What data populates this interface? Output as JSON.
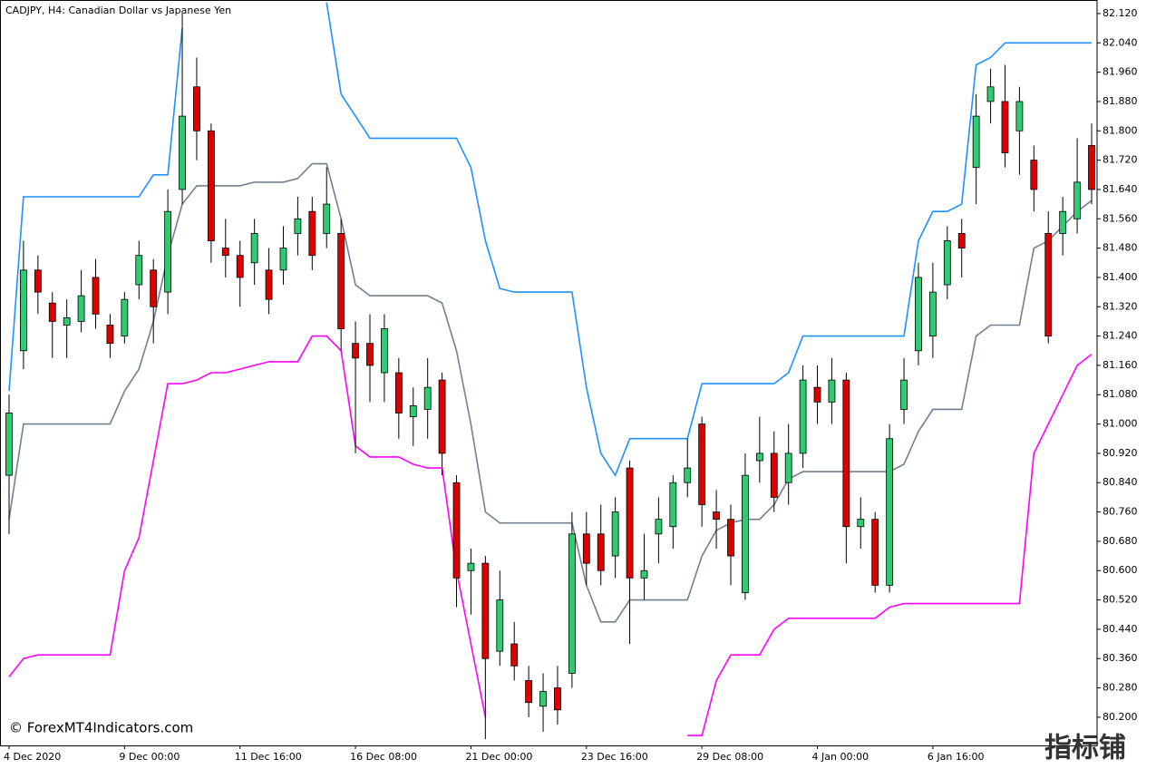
{
  "chart_data": {
    "type": "candlestick",
    "title": "CADJPY, H4:  Canadian Dollar vs Japanese Yen",
    "watermark": "© ForexMT4Indicators.com",
    "corner_mark": "指标铺",
    "bull_color": "#2ecc71",
    "bear_color": "#dd0000",
    "open": [
      80.86,
      81.2,
      81.42,
      81.33,
      81.27,
      81.28,
      81.4,
      81.27,
      81.24,
      81.38,
      81.42,
      81.36,
      81.64,
      81.92,
      81.8,
      81.48,
      81.46,
      81.44,
      81.42,
      81.42,
      81.52,
      81.58,
      81.52,
      81.52,
      81.22,
      81.22,
      81.14,
      81.14,
      81.02,
      81.04,
      81.12,
      80.84,
      80.6,
      80.62,
      80.38,
      80.4,
      80.3,
      80.23,
      80.28,
      80.32,
      80.7,
      80.7,
      80.64,
      80.88,
      80.58,
      80.7,
      80.72,
      80.84,
      81.0,
      80.76,
      80.74,
      80.54,
      80.9,
      80.92,
      80.84,
      80.92,
      81.1,
      81.06,
      81.12,
      80.72,
      80.74,
      80.56,
      81.04,
      81.2,
      81.24,
      81.38,
      81.52,
      81.7,
      81.88,
      81.88,
      81.8,
      81.72,
      81.52,
      81.52,
      81.56,
      81.76
    ],
    "high": [
      81.08,
      81.5,
      81.46,
      81.36,
      81.34,
      81.42,
      81.45,
      81.3,
      81.36,
      81.5,
      81.45,
      81.64,
      82.12,
      82.0,
      81.82,
      81.56,
      81.5,
      81.56,
      81.48,
      81.54,
      81.62,
      81.62,
      81.7,
      81.56,
      81.28,
      81.3,
      81.3,
      81.18,
      81.1,
      81.18,
      81.14,
      80.86,
      80.66,
      80.64,
      80.6,
      80.46,
      80.34,
      80.32,
      80.34,
      80.76,
      80.76,
      80.78,
      80.8,
      80.9,
      80.7,
      80.8,
      80.86,
      80.96,
      81.02,
      80.82,
      80.78,
      80.92,
      81.02,
      80.98,
      81.0,
      81.16,
      81.16,
      81.18,
      81.14,
      80.8,
      80.76,
      81.0,
      81.18,
      81.44,
      81.44,
      81.54,
      81.56,
      81.9,
      81.97,
      81.98,
      81.92,
      81.76,
      81.58,
      81.62,
      81.78,
      81.82
    ],
    "low": [
      80.7,
      81.15,
      81.3,
      81.18,
      81.18,
      81.25,
      81.26,
      81.18,
      81.22,
      81.34,
      81.22,
      81.3,
      81.6,
      81.72,
      81.44,
      81.4,
      81.32,
      81.38,
      81.3,
      81.38,
      81.46,
      81.42,
      81.48,
      81.2,
      80.92,
      81.06,
      81.06,
      80.96,
      80.94,
      80.96,
      80.86,
      80.5,
      80.48,
      80.14,
      80.34,
      80.3,
      80.2,
      80.16,
      80.18,
      80.28,
      80.56,
      80.56,
      80.58,
      80.4,
      80.52,
      80.62,
      80.66,
      80.8,
      80.72,
      80.66,
      80.56,
      80.52,
      80.84,
      80.76,
      80.78,
      80.88,
      81.0,
      81.0,
      80.62,
      80.66,
      80.54,
      80.54,
      81.0,
      81.16,
      81.18,
      81.34,
      81.4,
      81.6,
      81.82,
      81.7,
      81.68,
      81.58,
      81.22,
      81.46,
      81.52,
      81.6
    ],
    "close": [
      81.03,
      81.42,
      81.36,
      81.28,
      81.29,
      81.35,
      81.3,
      81.22,
      81.34,
      81.46,
      81.32,
      81.58,
      81.84,
      81.8,
      81.5,
      81.46,
      81.4,
      81.52,
      81.34,
      81.48,
      81.56,
      81.46,
      81.6,
      81.26,
      81.18,
      81.16,
      81.26,
      81.03,
      81.05,
      81.1,
      80.92,
      80.58,
      80.62,
      80.36,
      80.52,
      80.34,
      80.24,
      80.27,
      80.22,
      80.7,
      80.62,
      80.6,
      80.76,
      80.58,
      80.6,
      80.74,
      80.84,
      80.88,
      80.78,
      80.74,
      80.64,
      80.86,
      80.92,
      80.8,
      80.92,
      81.12,
      81.06,
      81.12,
      80.72,
      80.74,
      80.56,
      80.96,
      81.12,
      81.4,
      81.36,
      81.5,
      81.48,
      81.84,
      81.92,
      81.74,
      81.88,
      81.64,
      81.24,
      81.58,
      81.66,
      81.64
    ],
    "series": [
      {
        "color": "#1e90ff",
        "values": [
          81.09,
          81.62,
          81.62,
          81.62,
          81.62,
          81.62,
          81.62,
          81.62,
          81.62,
          81.62,
          81.68,
          81.68,
          82.08,
          null,
          null,
          null,
          null,
          null,
          null,
          null,
          null,
          null,
          82.15,
          81.9,
          81.84,
          81.78,
          81.78,
          81.78,
          81.78,
          81.78,
          81.78,
          81.78,
          81.7,
          81.5,
          81.37,
          81.36,
          81.36,
          81.36,
          81.36,
          81.36,
          81.1,
          80.92,
          80.86,
          80.96,
          80.96,
          80.96,
          80.96,
          80.96,
          81.11,
          81.11,
          81.11,
          81.11,
          81.11,
          81.11,
          81.14,
          81.24,
          81.24,
          81.24,
          81.24,
          81.24,
          81.24,
          81.24,
          81.24,
          81.5,
          81.58,
          81.58,
          81.6,
          81.98,
          82.0,
          82.04,
          82.04,
          82.04,
          82.04,
          82.04,
          82.04,
          82.04
        ]
      },
      {
        "color": "#708090",
        "values": [
          80.74,
          81.0,
          81.0,
          81.0,
          81.0,
          81.0,
          81.0,
          81.0,
          81.09,
          81.15,
          81.28,
          81.46,
          81.6,
          81.65,
          81.65,
          81.65,
          81.65,
          81.66,
          81.66,
          81.66,
          81.67,
          81.71,
          81.71,
          81.56,
          81.38,
          81.35,
          81.35,
          81.35,
          81.35,
          81.35,
          81.33,
          81.2,
          81.0,
          80.76,
          80.73,
          80.73,
          80.73,
          80.73,
          80.73,
          80.73,
          80.56,
          80.46,
          80.46,
          80.52,
          80.52,
          80.52,
          80.52,
          80.52,
          80.64,
          80.71,
          80.73,
          80.74,
          80.74,
          80.78,
          80.85,
          80.87,
          80.87,
          80.87,
          80.87,
          80.87,
          80.87,
          80.87,
          80.89,
          80.98,
          81.04,
          81.04,
          81.04,
          81.24,
          81.27,
          81.27,
          81.27,
          81.48,
          81.5,
          81.54,
          81.58,
          81.61
        ]
      },
      {
        "color": "#ff00ff",
        "values": [
          80.31,
          80.36,
          80.37,
          80.37,
          80.37,
          80.37,
          80.37,
          80.37,
          80.6,
          80.69,
          80.9,
          81.11,
          81.11,
          81.12,
          81.14,
          81.14,
          81.15,
          81.16,
          81.17,
          81.17,
          81.17,
          81.24,
          81.24,
          81.2,
          80.94,
          80.91,
          80.91,
          80.91,
          80.89,
          80.88,
          80.88,
          80.6,
          80.4,
          80.2,
          null,
          null,
          null,
          null,
          null,
          null,
          null,
          null,
          null,
          null,
          null,
          null,
          null,
          80.15,
          80.15,
          80.3,
          80.37,
          80.37,
          80.37,
          80.44,
          80.47,
          80.47,
          80.47,
          80.47,
          80.47,
          80.47,
          80.47,
          80.5,
          80.51,
          80.51,
          80.51,
          80.51,
          80.51,
          80.51,
          80.51,
          80.51,
          80.51,
          80.92,
          81.0,
          81.08,
          81.16,
          81.19
        ]
      }
    ],
    "ylim": [
      80.123,
      82.157
    ],
    "yticks": [
      {
        "value": 82.12,
        "label": "82.120"
      },
      {
        "value": 82.04,
        "label": "82.040"
      },
      {
        "value": 81.96,
        "label": "81.960"
      },
      {
        "value": 81.88,
        "label": "81.880"
      },
      {
        "value": 81.8,
        "label": "81.800"
      },
      {
        "value": 81.72,
        "label": "81.720"
      },
      {
        "value": 81.64,
        "label": "81.640"
      },
      {
        "value": 81.56,
        "label": "81.560"
      },
      {
        "value": 81.48,
        "label": "81.480"
      },
      {
        "value": 81.4,
        "label": "81.400"
      },
      {
        "value": 81.32,
        "label": "81.320"
      },
      {
        "value": 81.24,
        "label": "81.240"
      },
      {
        "value": 81.16,
        "label": "81.160"
      },
      {
        "value": 81.08,
        "label": "81.080"
      },
      {
        "value": 81.0,
        "label": "81.000"
      },
      {
        "value": 80.92,
        "label": "80.920"
      },
      {
        "value": 80.84,
        "label": "80.840"
      },
      {
        "value": 80.76,
        "label": "80.760"
      },
      {
        "value": 80.68,
        "label": "80.680"
      },
      {
        "value": 80.6,
        "label": "80.600"
      },
      {
        "value": 80.52,
        "label": "80.520"
      },
      {
        "value": 80.44,
        "label": "80.440"
      },
      {
        "value": 80.36,
        "label": "80.360"
      },
      {
        "value": 80.28,
        "label": "80.280"
      },
      {
        "value": 80.2,
        "label": "80.200"
      }
    ],
    "xlim": [
      0,
      75
    ],
    "xticks": [
      {
        "value": 0,
        "label": "4 Dec 2020"
      },
      {
        "value": 8,
        "label": "9 Dec 00:00"
      },
      {
        "value": 16,
        "label": "11 Dec 16:00"
      },
      {
        "value": 24,
        "label": "16 Dec 08:00"
      },
      {
        "value": 32,
        "label": "21 Dec 00:00"
      },
      {
        "value": 40,
        "label": "23 Dec 16:00"
      },
      {
        "value": 48,
        "label": "29 Dec 08:00"
      },
      {
        "value": 56,
        "label": "4 Jan 00:00"
      },
      {
        "value": 64,
        "label": "6 Jan 16:00"
      }
    ]
  }
}
